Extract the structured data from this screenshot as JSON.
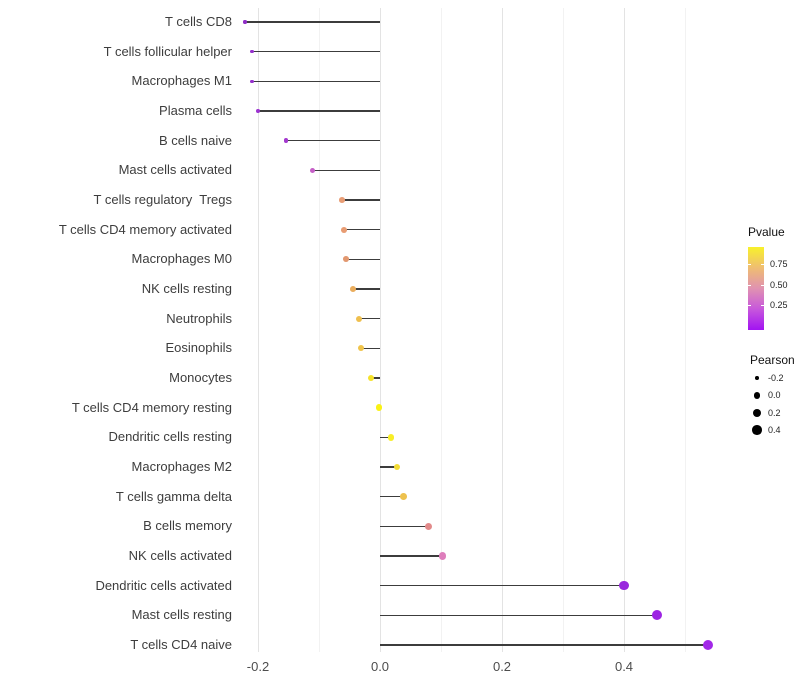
{
  "chart_data": {
    "type": "lollipop",
    "title": "",
    "xlabel": "",
    "ylabel": "",
    "orientation": "horizontal",
    "grid": true,
    "categories": [
      "T cells CD8",
      "T cells follicular helper",
      "Macrophages M1",
      "Plasma cells",
      "B cells naive",
      "Mast cells activated",
      "T cells regulatory  Tregs",
      "T cells CD4 memory activated",
      "Macrophages M0",
      "NK cells resting",
      "Neutrophils",
      "Eosinophils",
      "Monocytes",
      "T cells CD4 memory resting",
      "Dendritic cells resting",
      "Macrophages M2",
      "T cells gamma delta",
      "B cells memory",
      "NK cells activated",
      "Dendritic cells activated",
      "Mast cells resting",
      "T cells CD4 naive"
    ],
    "series": [
      {
        "name": "Pearson",
        "values": [
          -0.221,
          -0.21,
          -0.21,
          -0.2,
          -0.154,
          -0.11,
          -0.062,
          -0.059,
          -0.056,
          -0.044,
          -0.034,
          -0.031,
          -0.015,
          -0.002,
          0.018,
          0.028,
          0.039,
          0.079,
          0.102,
          0.4,
          0.454,
          0.538
        ]
      }
    ],
    "point_colors_by_pvalue": [
      "#8F2DC6",
      "#9530CC",
      "#9530CC",
      "#9C34D0",
      "#A338CE",
      "#C55FC7",
      "#E89D75",
      "#E89C73",
      "#E29870",
      "#EAAD5D",
      "#EFBF4E",
      "#F0C44A",
      "#F5E22B",
      "#FAF214",
      "#F8EE27",
      "#F3DC36",
      "#EDC14E",
      "#E28A8A",
      "#DE7EBC",
      "#9929DD",
      "#9D24E3",
      "#A228E8"
    ],
    "x_ticks": {
      "major_values": [
        -0.2,
        0.0,
        0.2,
        0.4
      ],
      "major_labels": [
        "-0.2",
        "0.0",
        "0.2",
        "0.4"
      ],
      "minor_values": [
        -0.1,
        0.1,
        0.3,
        0.5
      ]
    },
    "xlim": [
      -0.23,
      0.607
    ],
    "baseline": 0.0,
    "legend_position": "right"
  },
  "legend": {
    "pvalue": {
      "title": "Pvalue",
      "ticks": [
        {
          "label": "0.75",
          "value": 0.75
        },
        {
          "label": "0.50",
          "value": 0.5
        },
        {
          "label": "0.25",
          "value": 0.25
        }
      ],
      "gradient_stops_top_to_bottom": [
        "#F8F12B",
        "#EFBD72",
        "#E092B1",
        "#C757DC",
        "#A213F2"
      ]
    },
    "pearson": {
      "title": "Pearson",
      "items": [
        {
          "label": "-0.2",
          "value": -0.2
        },
        {
          "label": "0.0",
          "value": 0.0
        },
        {
          "label": "0.2",
          "value": 0.2
        },
        {
          "label": "0.4",
          "value": 0.4
        }
      ]
    }
  },
  "colors": {
    "stem": "#3c3c3c",
    "grid_major": "#e3e3e3",
    "grid_minor": "#f2f2f2",
    "axis_text": "#4d4d4d",
    "category_text": "#3d3d3d",
    "legend_dot": "#000000",
    "background": "#ffffff"
  }
}
